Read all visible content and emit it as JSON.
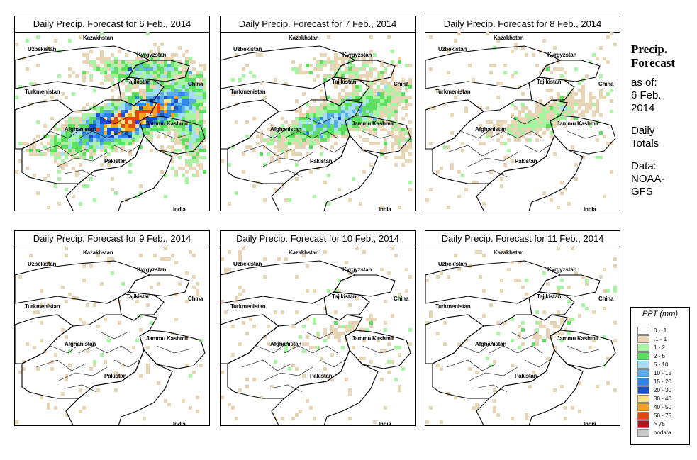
{
  "panels": [
    {
      "title": "Daily Precip. Forecast for  6 Feb., 2014",
      "intensity": 1.0
    },
    {
      "title": "Daily Precip. Forecast for  7 Feb., 2014",
      "intensity": 0.55
    },
    {
      "title": "Daily Precip. Forecast for  8 Feb., 2014",
      "intensity": 0.28
    },
    {
      "title": "Daily Precip. Forecast for  9 Feb., 2014",
      "intensity": 0.12
    },
    {
      "title": "Daily Precip. Forecast for  10 Feb., 2014",
      "intensity": 0.16
    },
    {
      "title": "Daily Precip. Forecast for  11 Feb., 2014",
      "intensity": 0.16
    }
  ],
  "map_labels": {
    "uzbekistan": "Uzbekistan",
    "kazakhstan": "Kazakhstan",
    "kyrgyzstan": "Kyrgyzstan",
    "tajikistan": "Tajikistan",
    "turkmenistan": "Turkmenistan",
    "china": "China",
    "afghanistan": "Afghanistan",
    "jammu_kashmir": "Jammu Kashmir",
    "pakistan": "Pakistan",
    "india": "India"
  },
  "sidebar": {
    "heading_line1": "Precip.",
    "heading_line2": "Forecast",
    "asof_line1": "as of:",
    "asof_line2": "6 Feb.",
    "asof_line3": "2014",
    "daily_line1": "Daily",
    "daily_line2": "Totals",
    "data_line1": "Data:",
    "data_line2": "NOAA-",
    "data_line3": "GFS"
  },
  "legend": {
    "title": "PPT (mm)",
    "items": [
      {
        "label": "0 - .1",
        "color": "#ffffff"
      },
      {
        "label": ".1 - 1",
        "color": "#e8d5b5"
      },
      {
        "label": "1 - 2",
        "color": "#a7f5a0"
      },
      {
        "label": "2 - 5",
        "color": "#5de060"
      },
      {
        "label": "5 - 10",
        "color": "#a6dcf4"
      },
      {
        "label": "10 - 15",
        "color": "#5aaee8"
      },
      {
        "label": "15 - 20",
        "color": "#2f86e6"
      },
      {
        "label": "20 - 30",
        "color": "#1a50cf"
      },
      {
        "label": "30 - 40",
        "color": "#fbe08a"
      },
      {
        "label": "40 - 50",
        "color": "#f6a319"
      },
      {
        "label": "50 - 75",
        "color": "#e34a10"
      },
      {
        "label": "> 75",
        "color": "#b5141c"
      },
      {
        "label": "nodata",
        "color": "#c8c8c8"
      }
    ]
  }
}
